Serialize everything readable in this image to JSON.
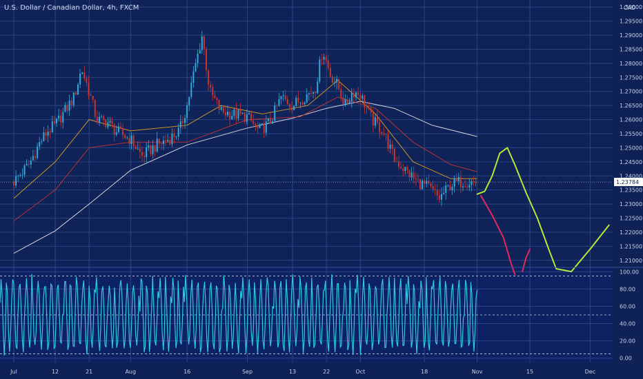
{
  "chart_data": [
    {
      "type": "candlestick",
      "title": "U.S. Dollar / Canadian Dollar, 4h, FXCM",
      "y_axis_label": "CAD",
      "ylim": [
        1.2075,
        1.3025
      ],
      "y_ticks": [
        "1.30000",
        "1.29500",
        "1.29000",
        "1.28500",
        "1.28000",
        "1.27500",
        "1.27000",
        "1.26500",
        "1.26000",
        "1.25500",
        "1.25000",
        "1.24500",
        "1.24000",
        "1.23500",
        "1.23000",
        "1.22500",
        "1.22000",
        "1.21500",
        "1.21000"
      ],
      "last_price": "1.23784",
      "x_ticks": [
        "Jul",
        "12",
        "21",
        "Aug",
        "16",
        "Sep",
        "13",
        "22",
        "Oct",
        "18",
        "Nov",
        "15",
        "Dec"
      ],
      "price_points": [
        {
          "x": "Jul 1",
          "y": 1.238
        },
        {
          "x": "Jul 5",
          "y": 1.244
        },
        {
          "x": "Jul 8",
          "y": 1.252
        },
        {
          "x": "Jul 10",
          "y": 1.256
        },
        {
          "x": "Jul 12",
          "y": 1.258
        },
        {
          "x": "Jul 14",
          "y": 1.262
        },
        {
          "x": "Jul 17",
          "y": 1.268
        },
        {
          "x": "Jul 19",
          "y": 1.278
        },
        {
          "x": "Jul 21",
          "y": 1.27
        },
        {
          "x": "Jul 23",
          "y": 1.26
        },
        {
          "x": "Jul 26",
          "y": 1.259
        },
        {
          "x": "Jul 28",
          "y": 1.256
        },
        {
          "x": "Aug 1",
          "y": 1.253
        },
        {
          "x": "Aug 4",
          "y": 1.247
        },
        {
          "x": "Aug 8",
          "y": 1.251
        },
        {
          "x": "Aug 11",
          "y": 1.253
        },
        {
          "x": "Aug 14",
          "y": 1.256
        },
        {
          "x": "Aug 16",
          "y": 1.265
        },
        {
          "x": "Aug 18",
          "y": 1.278
        },
        {
          "x": "Aug 20",
          "y": 1.29
        },
        {
          "x": "Aug 22",
          "y": 1.27
        },
        {
          "x": "Aug 25",
          "y": 1.263
        },
        {
          "x": "Aug 28",
          "y": 1.262
        },
        {
          "x": "Sep 1",
          "y": 1.261
        },
        {
          "x": "Sep 4",
          "y": 1.256
        },
        {
          "x": "Sep 7",
          "y": 1.259
        },
        {
          "x": "Sep 10",
          "y": 1.268
        },
        {
          "x": "Sep 13",
          "y": 1.265
        },
        {
          "x": "Sep 16",
          "y": 1.268
        },
        {
          "x": "Sep 19",
          "y": 1.271
        },
        {
          "x": "Sep 21",
          "y": 1.285
        },
        {
          "x": "Sep 23",
          "y": 1.276
        },
        {
          "x": "Sep 25",
          "y": 1.272
        },
        {
          "x": "Sep 27",
          "y": 1.265
        },
        {
          "x": "Sep 29",
          "y": 1.27
        },
        {
          "x": "Oct 1",
          "y": 1.269
        },
        {
          "x": "Oct 4",
          "y": 1.26
        },
        {
          "x": "Oct 7",
          "y": 1.256
        },
        {
          "x": "Oct 10",
          "y": 1.246
        },
        {
          "x": "Oct 13",
          "y": 1.242
        },
        {
          "x": "Oct 16",
          "y": 1.238
        },
        {
          "x": "Oct 19",
          "y": 1.236
        },
        {
          "x": "Oct 22",
          "y": 1.232
        },
        {
          "x": "Oct 25",
          "y": 1.237
        },
        {
          "x": "Oct 28",
          "y": 1.238
        },
        {
          "x": "Nov 1",
          "y": 1.2378
        }
      ],
      "moving_averages": [
        {
          "color": "#e8e8e8",
          "points": [
            {
              "x": "Jul 1",
              "y": 1.2125
            },
            {
              "x": "Jul 12",
              "y": 1.2205
            },
            {
              "x": "Jul 21",
              "y": 1.23
            },
            {
              "x": "Aug 1",
              "y": 1.242
            },
            {
              "x": "Aug 16",
              "y": 1.251
            },
            {
              "x": "Sep 1",
              "y": 1.257
            },
            {
              "x": "Sep 13",
              "y": 1.2605
            },
            {
              "x": "Sep 22",
              "y": 1.264
            },
            {
              "x": "Oct 1",
              "y": 1.2665
            },
            {
              "x": "Oct 10",
              "y": 1.264
            },
            {
              "x": "Oct 20",
              "y": 1.258
            },
            {
              "x": "Nov 1",
              "y": 1.254
            }
          ]
        },
        {
          "color": "#e1a020",
          "points": [
            {
              "x": "Jul 1",
              "y": 1.232
            },
            {
              "x": "Jul 12",
              "y": 1.245
            },
            {
              "x": "Jul 21",
              "y": 1.26
            },
            {
              "x": "Aug 1",
              "y": 1.256
            },
            {
              "x": "Aug 16",
              "y": 1.258
            },
            {
              "x": "Aug 25",
              "y": 1.265
            },
            {
              "x": "Sep 5",
              "y": 1.262
            },
            {
              "x": "Sep 17",
              "y": 1.265
            },
            {
              "x": "Sep 25",
              "y": 1.274
            },
            {
              "x": "Oct 5",
              "y": 1.262
            },
            {
              "x": "Oct 15",
              "y": 1.245
            },
            {
              "x": "Oct 25",
              "y": 1.239
            },
            {
              "x": "Nov 1",
              "y": 1.239
            }
          ]
        },
        {
          "color": "#c8342b",
          "points": [
            {
              "x": "Jul 1",
              "y": 1.224
            },
            {
              "x": "Jul 12",
              "y": 1.235
            },
            {
              "x": "Jul 21",
              "y": 1.25
            },
            {
              "x": "Aug 1",
              "y": 1.252
            },
            {
              "x": "Aug 16",
              "y": 1.252
            },
            {
              "x": "Sep 1",
              "y": 1.26
            },
            {
              "x": "Sep 15",
              "y": 1.261
            },
            {
              "x": "Sep 25",
              "y": 1.268
            },
            {
              "x": "Oct 5",
              "y": 1.264
            },
            {
              "x": "Oct 15",
              "y": 1.252
            },
            {
              "x": "Oct 25",
              "y": 1.244
            },
            {
              "x": "Nov 1",
              "y": 1.2415
            }
          ]
        }
      ],
      "drawings": [
        {
          "color": "#b8e83a",
          "points": [
            {
              "x": "Nov 1",
              "y": 1.2335
            },
            {
              "x": "Nov 3",
              "y": 1.2345
            },
            {
              "x": "Nov 5",
              "y": 1.24
            },
            {
              "x": "Nov 7",
              "y": 1.248
            },
            {
              "x": "Nov 9",
              "y": 1.25
            },
            {
              "x": "Nov 11",
              "y": 1.244
            },
            {
              "x": "Nov 14",
              "y": 1.234
            },
            {
              "x": "Nov 17",
              "y": 1.225
            },
            {
              "x": "Nov 20",
              "y": 1.214
            },
            {
              "x": "Nov 22",
              "y": 1.207
            },
            {
              "x": "Nov 26",
              "y": 1.206
            },
            {
              "x": "Dec 1",
              "y": 1.214
            },
            {
              "x": "Dec 6",
              "y": 1.2225
            }
          ]
        },
        {
          "color": "#e8265f",
          "points": [
            {
              "x": "Nov 2",
              "y": 1.233
            },
            {
              "x": "Nov 5",
              "y": 1.226
            },
            {
              "x": "Nov 8",
              "y": 1.218
            },
            {
              "x": "Nov 10",
              "y": 1.209
            },
            {
              "x": "Nov 11",
              "y": 1.205
            }
          ]
        },
        {
          "color": "#e8265f",
          "points": [
            {
              "x": "Nov 13",
              "y": 1.206
            },
            {
              "x": "Nov 14",
              "y": 1.211
            },
            {
              "x": "Nov 15",
              "y": 1.214
            }
          ]
        }
      ]
    },
    {
      "type": "line",
      "indicator": "oscillator",
      "ylim": [
        -5,
        105
      ],
      "y_ticks": [
        "100.00",
        "80.00",
        "60.00",
        "40.00",
        "20.00",
        "0.00"
      ],
      "levels": [
        95,
        50,
        5
      ],
      "color": "#2ec8e8",
      "cycles": 75,
      "end_x": "Nov 1"
    }
  ]
}
